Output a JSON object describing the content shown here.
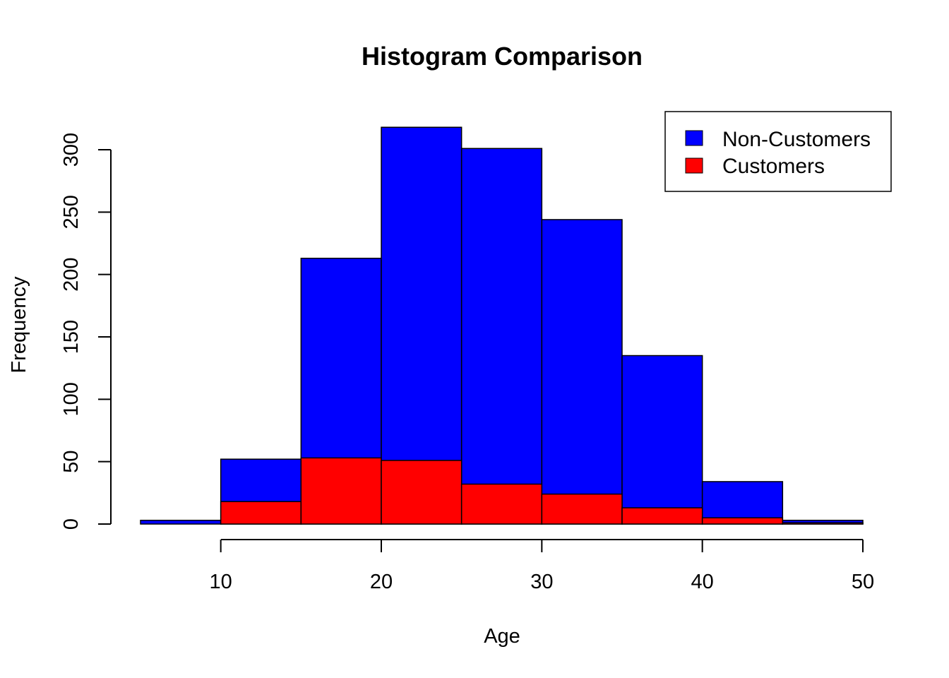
{
  "chart_data": {
    "type": "bar",
    "title": "Histogram Comparison",
    "xlabel": "Age",
    "ylabel": "Frequency",
    "xlim": [
      5,
      50
    ],
    "ylim": [
      0,
      320
    ],
    "x_ticks": [
      10,
      20,
      30,
      40,
      50
    ],
    "y_ticks": [
      0,
      50,
      100,
      150,
      200,
      250,
      300
    ],
    "bins": [
      {
        "start": 5,
        "end": 10
      },
      {
        "start": 10,
        "end": 15
      },
      {
        "start": 15,
        "end": 20
      },
      {
        "start": 20,
        "end": 25
      },
      {
        "start": 25,
        "end": 30
      },
      {
        "start": 30,
        "end": 35
      },
      {
        "start": 35,
        "end": 40
      },
      {
        "start": 40,
        "end": 45
      },
      {
        "start": 45,
        "end": 50
      }
    ],
    "series": [
      {
        "name": "Non-Customers",
        "color": "#0000ff",
        "values": [
          3,
          52,
          213,
          318,
          301,
          244,
          135,
          34,
          3
        ]
      },
      {
        "name": "Customers",
        "color": "#ff0000",
        "values": [
          0,
          18,
          53,
          51,
          32,
          24,
          13,
          5,
          1
        ]
      }
    ],
    "legend_position": "top-right",
    "grid": false
  }
}
